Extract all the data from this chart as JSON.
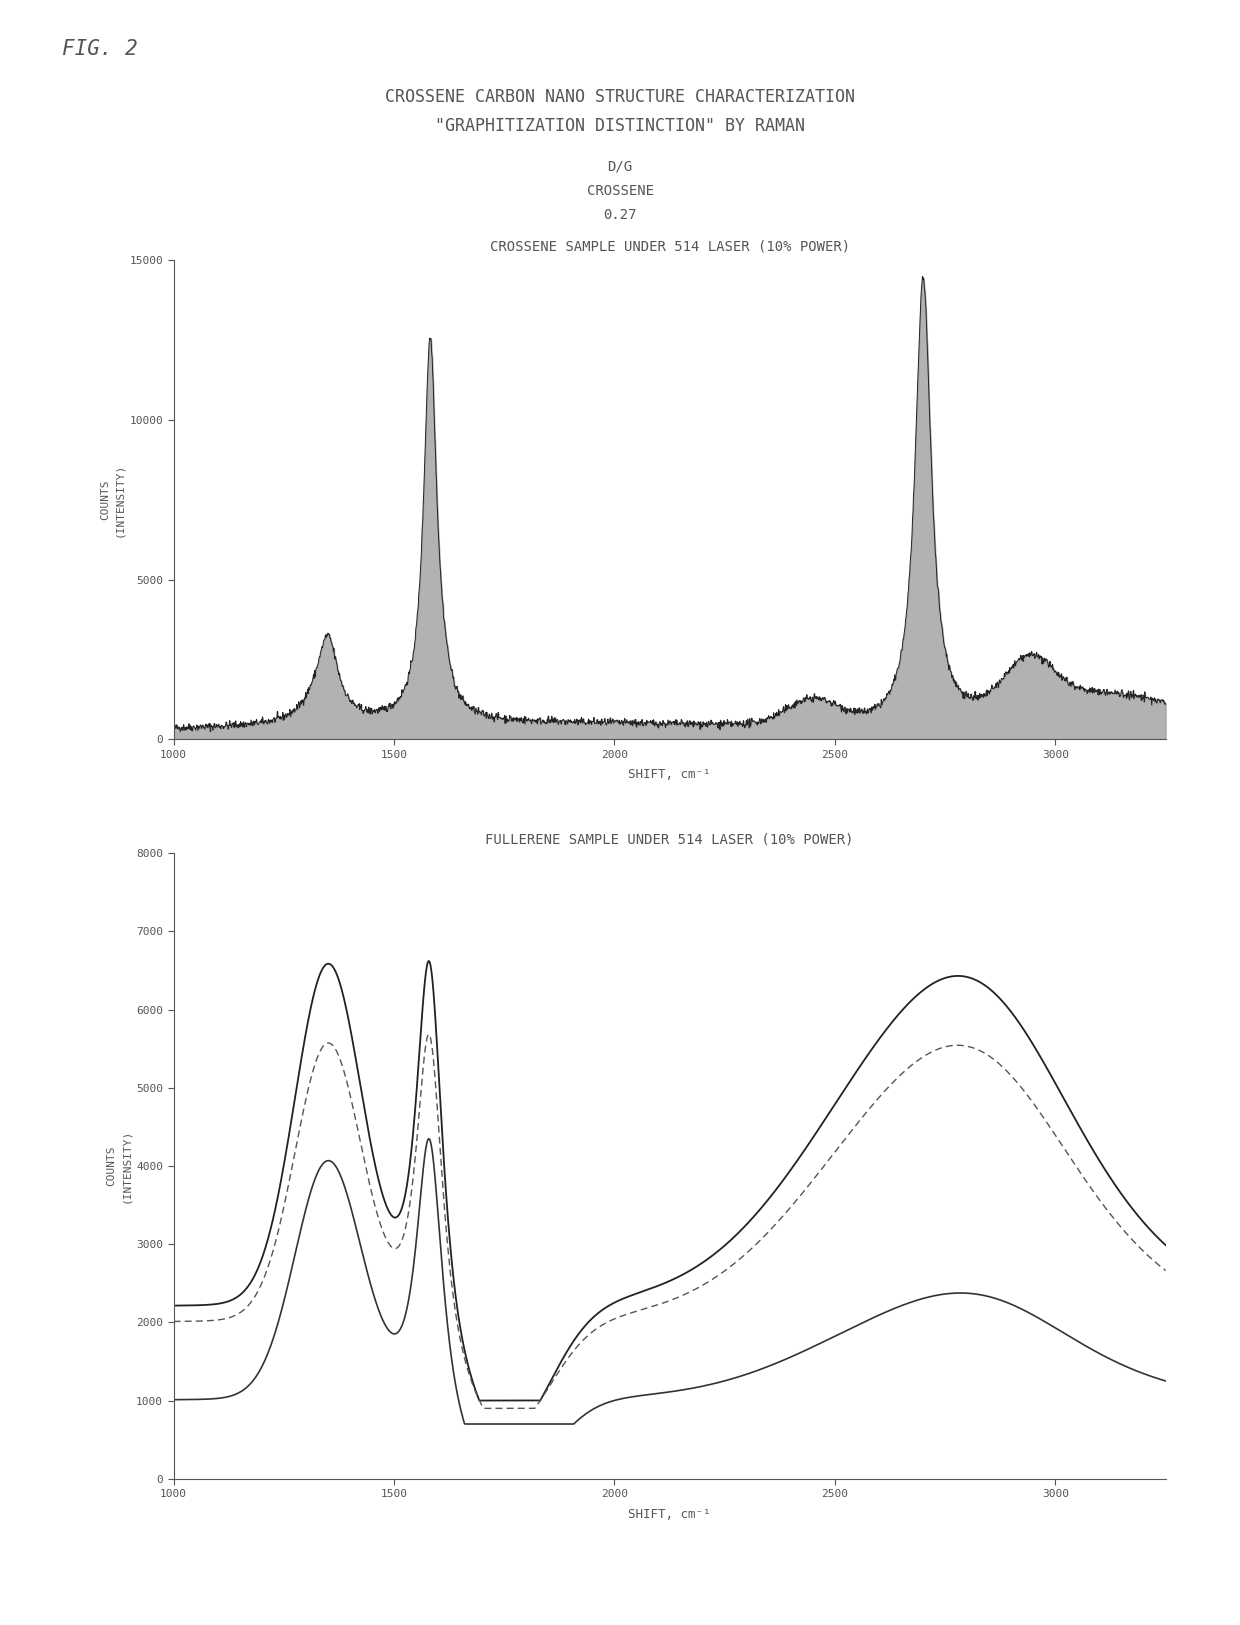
{
  "fig_label": "FIG. 2",
  "main_title_line1": "CROSSENE CARBON NANO STRUCTURE CHARACTERIZATION",
  "main_title_line2": "\"GRAPHITIZATION DISTINCTION\" BY RAMAN",
  "subtitle_line1": "D/G",
  "subtitle_line2": "CROSSENE",
  "subtitle_line3": "0.27",
  "plot1_title": "CROSSENE SAMPLE UNDER 514 LASER (10% POWER)",
  "plot2_title": "FULLERENE SAMPLE UNDER 514 LASER (10% POWER)",
  "xlabel": "SHIFT, cm⁻¹",
  "ylabel": "COUNTS\n(INTENSITY)",
  "plot1_ylim": [
    0,
    15000
  ],
  "plot1_yticks": [
    0,
    5000,
    10000,
    15000
  ],
  "plot2_ylim": [
    0,
    8000
  ],
  "plot2_yticks": [
    0,
    1000,
    2000,
    3000,
    4000,
    5000,
    6000,
    7000,
    8000
  ],
  "xlim": [
    1000,
    3250
  ],
  "xticks": [
    1000,
    1500,
    2000,
    2500,
    3000
  ],
  "background_color": "#ffffff",
  "line_color": "#333333",
  "fill_color": "#888888"
}
